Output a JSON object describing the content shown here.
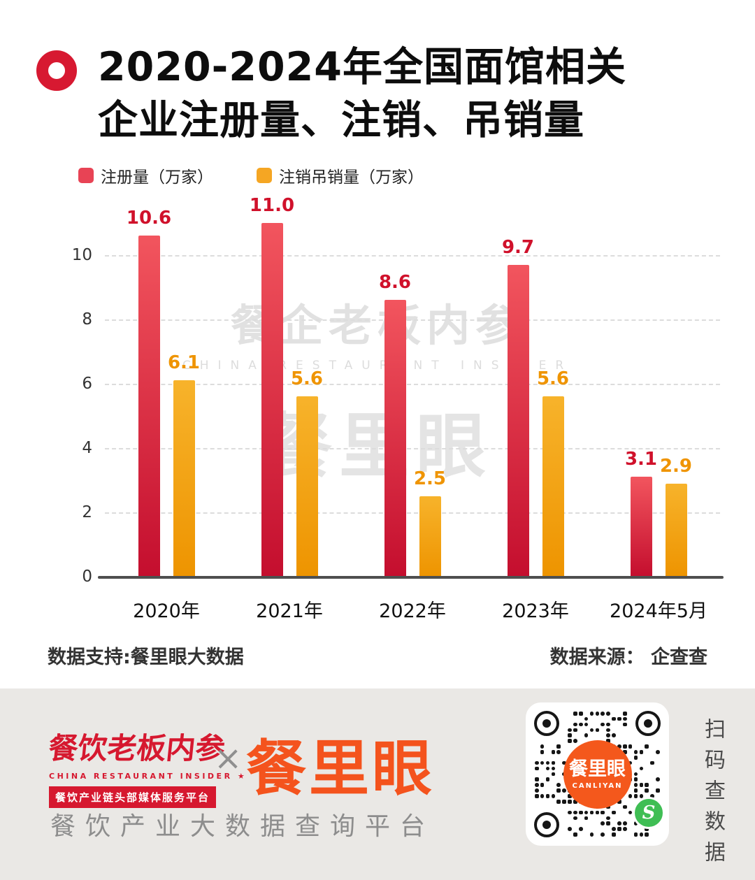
{
  "colors": {
    "red_bar_top": "#f2555e",
    "red_bar_bottom": "#c40e2e",
    "orange_bar_top": "#f7b32b",
    "orange_bar_bottom": "#ee9400",
    "red_label": "#d0112b",
    "orange_label": "#ef9400",
    "accent_red": "#d71931",
    "footer_orange": "#f4531d",
    "qr_green": "#3fbe54"
  },
  "header": {
    "title_line1": "2020-2024年全国面馆相关",
    "title_line2": "企业注册量、注销、吊销量"
  },
  "legend": [
    {
      "label": "注册量（万家）",
      "color": "#e84355"
    },
    {
      "label": "注销吊销量（万家）",
      "color": "#f5a623"
    }
  ],
  "chart_data": {
    "type": "bar",
    "categories": [
      "2020年",
      "2021年",
      "2022年",
      "2023年",
      "2024年5月"
    ],
    "series": [
      {
        "name": "注册量（万家）",
        "color": "red",
        "values": [
          10.6,
          11.0,
          8.6,
          9.7,
          3.1
        ]
      },
      {
        "name": "注销吊销量（万家）",
        "color": "orange",
        "values": [
          6.1,
          5.6,
          2.5,
          5.6,
          2.9
        ]
      }
    ],
    "ylim": [
      0,
      11.4
    ],
    "yticks": [
      0,
      2,
      4,
      6,
      8,
      10
    ],
    "grid": true,
    "legend_position": "top"
  },
  "watermark": {
    "line1": "餐企老板内参",
    "line2": "CHINA RESTAURANT INSIDER",
    "line3": "餐里眼"
  },
  "source": {
    "left": "数据支持:餐里眼大数据",
    "right": "数据来源： 企查查"
  },
  "footer": {
    "brand1_name": "餐饮老板内参",
    "brand1_sub": "CHINA RESTAURANT INSIDER ★",
    "brand1_tagline": "餐饮产业链头部媒体服务平台",
    "separator": "×",
    "brand2_name": "餐里眼",
    "tagline": "餐饮产业大数据查询平台",
    "qr_center_line1": "餐里眼",
    "qr_center_line2": "CANLIYAN",
    "side_text": "扫码查数据"
  }
}
